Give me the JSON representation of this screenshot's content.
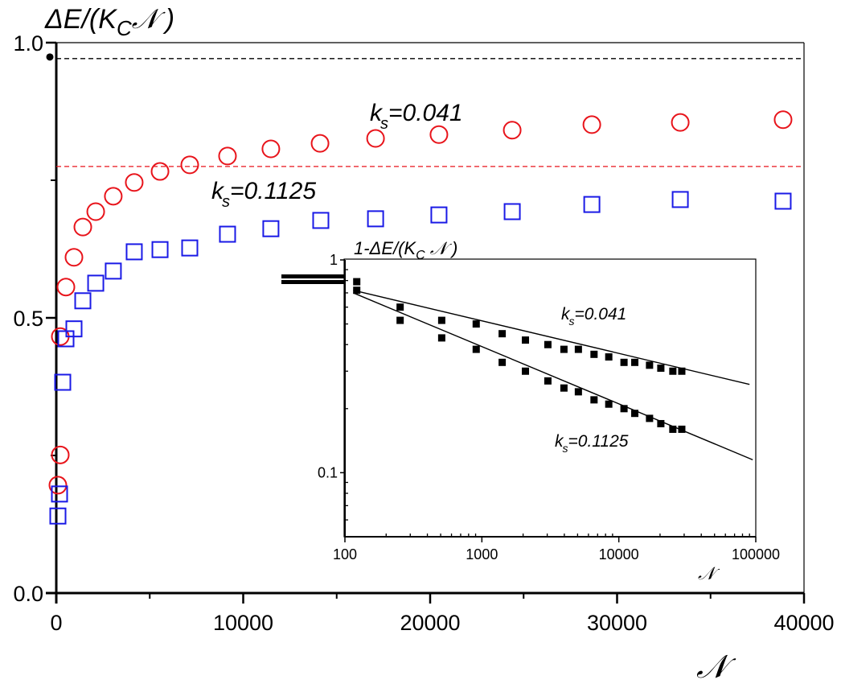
{
  "chart_data": {
    "type": "scatter",
    "title": "",
    "ylabel": "ΔE/(K_C 𝒩)",
    "ylabel_main": "ΔE/(K",
    "ylabel_sub": "C",
    "ylabel_tail": "𝒩 )",
    "xlabel": "𝒩",
    "xlim": [
      0,
      40000
    ],
    "ylim": [
      0,
      1.0
    ],
    "xticks": [
      0,
      10000,
      20000,
      30000,
      40000
    ],
    "xtick_labels": [
      "0",
      "10000",
      "20000",
      "30000",
      "40000"
    ],
    "yticks": [
      0.0,
      0.5,
      1.0
    ],
    "ytick_labels": [
      "0.0",
      "0.5",
      "1.0"
    ],
    "grid": false,
    "series": [
      {
        "name": "k_s=0.041",
        "marker": "open-circle",
        "color": "#e8141b",
        "x": [
          86,
          215,
          215,
          516,
          946,
          1420,
          2110,
          3050,
          4170,
          5550,
          7140,
          9160,
          11480,
          14110,
          17080,
          20470,
          24390,
          28650,
          33380,
          38880
        ],
        "y": [
          0.196,
          0.251,
          0.466,
          0.556,
          0.61,
          0.665,
          0.693,
          0.721,
          0.746,
          0.766,
          0.778,
          0.794,
          0.807,
          0.817,
          0.826,
          0.833,
          0.841,
          0.851,
          0.855,
          0.86
        ]
      },
      {
        "name": "k_s=0.1125",
        "marker": "open-square",
        "color": "#1a1ae6",
        "x": [
          86,
          172,
          344,
          516,
          946,
          1420,
          2110,
          3050,
          4170,
          5550,
          7140,
          9160,
          11480,
          14150,
          17080,
          20470,
          24390,
          28650,
          33380,
          38880
        ],
        "y": [
          0.14,
          0.18,
          0.383,
          0.462,
          0.48,
          0.531,
          0.563,
          0.585,
          0.62,
          0.624,
          0.627,
          0.652,
          0.662,
          0.677,
          0.68,
          0.687,
          0.693,
          0.706,
          0.715,
          0.712
        ]
      }
    ],
    "reference_lines": [
      {
        "name": "asymptote-black",
        "y": 0.971,
        "color": "#000000",
        "style": "dashed"
      },
      {
        "name": "asymptote-red",
        "y": 0.775,
        "color": "#e8141b",
        "style": "dashed"
      }
    ],
    "annotations": [
      {
        "text_main": "k",
        "text_sub": "s",
        "text_tail": "=0.041",
        "near_series": "k_s=0.041"
      },
      {
        "text_main": "k",
        "text_sub": "s",
        "text_tail": "=0.1125",
        "near_series": "k_s=0.1125"
      }
    ],
    "origin_marker": {
      "x": 0,
      "y": 0.99,
      "marker": "filled-circle",
      "color": "#000000"
    },
    "inset": {
      "type": "scatter",
      "xscale": "log",
      "yscale": "log",
      "title_main": "1-ΔE/(K",
      "title_sub": "C",
      "title_tail": " 𝒩 )",
      "xlabel": "𝒩",
      "xlim": [
        100,
        100000
      ],
      "ylim": [
        0.05,
        1
      ],
      "xticks": [
        100,
        1000,
        10000,
        100000
      ],
      "xtick_labels": [
        "100",
        "1000",
        "10000",
        "100000"
      ],
      "yticks": [
        0.1,
        1
      ],
      "ytick_labels": [
        "0.1",
        "1"
      ],
      "series": [
        {
          "name": "k_s=0.041",
          "marker": "filled-square",
          "color": "#000000",
          "x": [
            122,
            253,
            509,
            909,
            1407,
            2080,
            3034,
            3974,
            5066,
            6591,
            8445,
            10910,
            13080,
            16760,
            20260,
            24800,
            28820
          ],
          "y": [
            0.79,
            0.6,
            0.52,
            0.5,
            0.45,
            0.42,
            0.4,
            0.38,
            0.38,
            0.36,
            0.35,
            0.33,
            0.33,
            0.32,
            0.31,
            0.3,
            0.3
          ],
          "fit_line": {
            "x": [
              115,
              90000
            ],
            "y": [
              0.72,
              0.26
            ]
          }
        },
        {
          "name": "k_s=0.1125",
          "marker": "filled-square",
          "color": "#000000",
          "x": [
            122,
            253,
            509,
            909,
            1407,
            2080,
            3034,
            3974,
            5066,
            6591,
            8445,
            10910,
            13080,
            16760,
            20260,
            24800,
            28820
          ],
          "y": [
            0.72,
            0.52,
            0.43,
            0.38,
            0.33,
            0.3,
            0.27,
            0.25,
            0.24,
            0.22,
            0.21,
            0.2,
            0.19,
            0.18,
            0.17,
            0.16,
            0.16
          ],
          "fit_line": {
            "x": [
              115,
              95000
            ],
            "y": [
              0.7,
              0.115
            ]
          }
        }
      ],
      "annotations": [
        {
          "text_main": "k",
          "text_sub": "s",
          "text_tail": "=0.041"
        },
        {
          "text_main": "k",
          "text_sub": "s",
          "text_tail": "=0.1125"
        }
      ]
    }
  }
}
